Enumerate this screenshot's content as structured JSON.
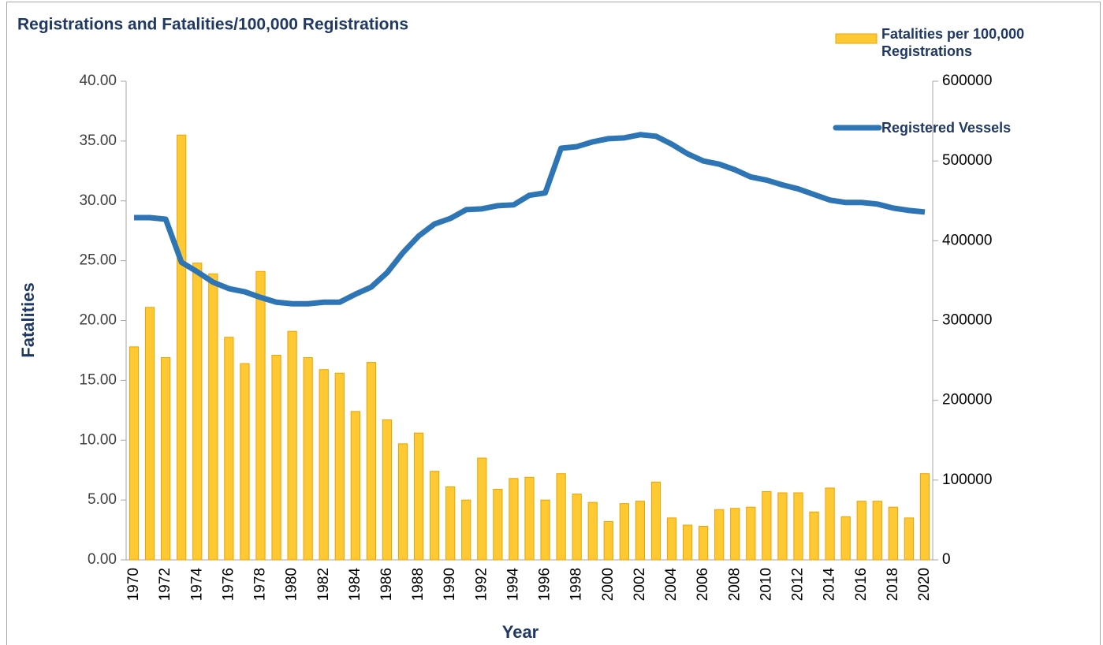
{
  "chart_data": {
    "type": "combo",
    "title": "Registrations and Fatalities/100,000 Registrations",
    "xlabel": "Year",
    "ylabel": "Fatalities",
    "categories": [
      "1970",
      null,
      "1972",
      null,
      "1974",
      null,
      "1976",
      null,
      "1978",
      null,
      "1980",
      null,
      "1982",
      null,
      "1984",
      null,
      "1986",
      null,
      "1988",
      null,
      "1990",
      null,
      "1992",
      null,
      "1994",
      null,
      "1996",
      null,
      "1998",
      null,
      "2000",
      null,
      "2002",
      null,
      "2004",
      null,
      "2006",
      null,
      "2008",
      null,
      "2010",
      null,
      "2012",
      null,
      "2014",
      null,
      "2016",
      null,
      "2018",
      null,
      "2020"
    ],
    "series": [
      {
        "name": "Fatalities per 100,000 Registrations",
        "type": "bar",
        "color": "#FFC933",
        "values": [
          17.8,
          21.1,
          16.9,
          35.5,
          24.8,
          23.9,
          18.6,
          16.4,
          24.1,
          17.1,
          19.1,
          16.9,
          15.9,
          15.6,
          12.4,
          16.5,
          11.7,
          9.7,
          10.6,
          7.4,
          6.1,
          5.0,
          8.5,
          5.9,
          6.8,
          6.9,
          5.0,
          7.2,
          5.5,
          4.8,
          3.2,
          4.7,
          4.9,
          6.5,
          3.5,
          2.9,
          2.8,
          4.2,
          4.3,
          4.4,
          5.7,
          5.6,
          5.6,
          4.0,
          6.0,
          3.6,
          4.9,
          4.9,
          4.4,
          3.5,
          7.2
        ]
      },
      {
        "name": "Registered Vessels",
        "type": "line",
        "axis": "y2",
        "color": "#2E75B6",
        "values": [
          429000,
          429000,
          427000,
          373000,
          361000,
          348000,
          340000,
          336000,
          329000,
          323000,
          321000,
          321000,
          323000,
          323000,
          333000,
          342000,
          360000,
          385000,
          406000,
          421000,
          428000,
          439000,
          440000,
          444000,
          445000,
          457000,
          460000,
          516000,
          518000,
          524000,
          528000,
          529000,
          533000,
          531000,
          521000,
          509000,
          500000,
          496000,
          489000,
          480000,
          476000,
          470000,
          465000,
          458000,
          451000,
          448000,
          448000,
          446000,
          441000,
          438000,
          436000
        ]
      }
    ],
    "ylim": [
      0,
      40
    ],
    "yticks": [
      {
        "value": 0,
        "label": "0.00"
      },
      {
        "value": 5,
        "label": "5.00"
      },
      {
        "value": 10,
        "label": "10.00"
      },
      {
        "value": 15,
        "label": "15.00"
      },
      {
        "value": 20,
        "label": "20.00"
      },
      {
        "value": 25,
        "label": "25.00"
      },
      {
        "value": 30,
        "label": "30.00"
      },
      {
        "value": 35,
        "label": "35.00"
      },
      {
        "value": 40,
        "label": "40.00"
      }
    ],
    "y2lim": [
      0,
      600000
    ],
    "y2ticks": [
      0,
      100000,
      200000,
      300000,
      400000,
      500000,
      600000
    ],
    "grid": false
  }
}
